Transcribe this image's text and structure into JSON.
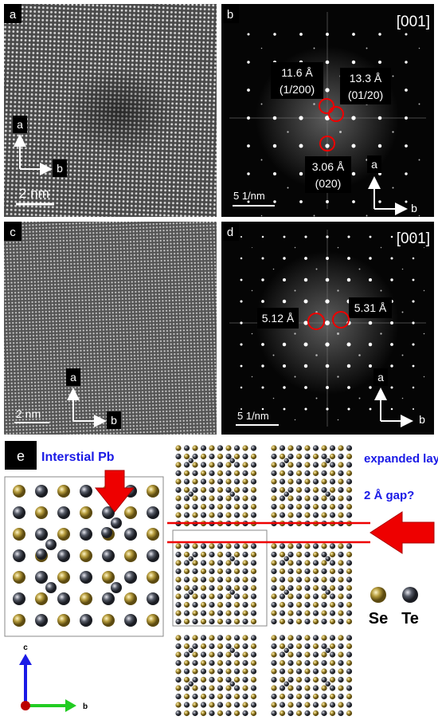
{
  "panels": [
    {
      "label": "a",
      "axes": [
        "a",
        "b"
      ],
      "scale": "2 nm"
    },
    {
      "label": "b",
      "zone": "[001]",
      "spots": [
        {
          "d": "11.6 Å",
          "hkl": "(1/200)"
        },
        {
          "d": "13.3 Å",
          "hkl": "(01/20)"
        },
        {
          "d": "3.06 Å",
          "hkl": "(020)"
        }
      ],
      "scale": "5 1/nm",
      "axes": [
        "a",
        "b"
      ]
    },
    {
      "label": "c",
      "axes": [
        "a",
        "b"
      ],
      "scale": "2 nm"
    },
    {
      "label": "d",
      "zone": "[001]",
      "spots": [
        {
          "d": "5.12 Å"
        },
        {
          "d": "5.31 Å"
        }
      ],
      "scale": "5 1/nm",
      "axes": [
        "a",
        "b"
      ]
    },
    {
      "label": "e",
      "interstitial": "Interstial Pb",
      "gap": [
        "expanded layers ,",
        "2 Å gap?"
      ],
      "legend": [
        "Se",
        "Te"
      ],
      "axes": [
        "c",
        "b"
      ]
    }
  ]
}
